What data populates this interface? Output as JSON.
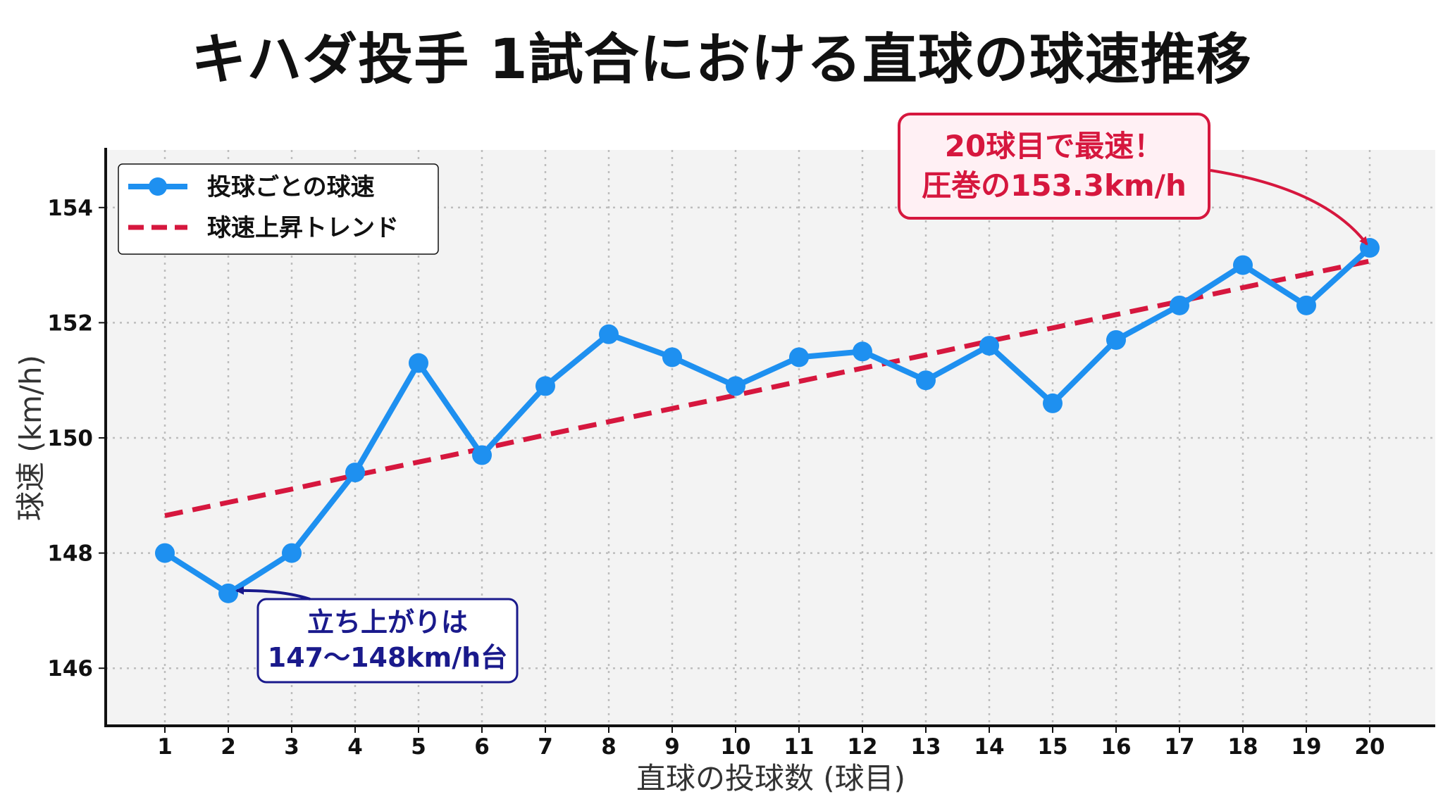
{
  "chart_data": {
    "type": "line",
    "title": "キハダ投手 1試合における直球の球速推移",
    "xlabel": "直球の投球数 (球目)",
    "ylabel": "球速 (km/h)",
    "categories": [
      "1",
      "2",
      "3",
      "4",
      "5",
      "6",
      "7",
      "8",
      "9",
      "10",
      "11",
      "12",
      "13",
      "14",
      "15",
      "16",
      "17",
      "18",
      "19",
      "20"
    ],
    "x": [
      1,
      2,
      3,
      4,
      5,
      6,
      7,
      8,
      9,
      10,
      11,
      12,
      13,
      14,
      15,
      16,
      17,
      18,
      19,
      20
    ],
    "ylim": [
      145,
      155
    ],
    "yticks": [
      "146",
      "148",
      "150",
      "152",
      "154"
    ],
    "grid": true,
    "legend_position": "top-left",
    "series": [
      {
        "name": "投球ごとの球速",
        "color": "#1E90F0",
        "style": "solid-with-markers",
        "values": [
          148.0,
          147.3,
          148.0,
          149.4,
          151.3,
          149.7,
          150.9,
          151.8,
          151.4,
          150.9,
          151.4,
          151.5,
          151.0,
          151.6,
          150.6,
          151.7,
          152.3,
          153.0,
          152.3,
          153.3
        ]
      },
      {
        "name": "球速上昇トレンド",
        "color": "#D6173E",
        "style": "dashed",
        "values": [
          148.65,
          148.88,
          149.11,
          149.35,
          149.58,
          149.81,
          150.05,
          150.28,
          150.51,
          150.74,
          150.98,
          151.21,
          151.44,
          151.68,
          151.91,
          152.14,
          152.37,
          152.61,
          152.84,
          153.07
        ]
      }
    ],
    "annotations": [
      {
        "lines": [
          "20球目で最速！",
          "圧巻の153.3km/h"
        ],
        "target_x": 20,
        "target_y": 153.3,
        "text_color": "#D6173E",
        "border_color": "#D6173E",
        "fill_color": "#FFF0F4"
      },
      {
        "lines": [
          "立ち上がりは",
          "147〜148km/h台"
        ],
        "target_x": 2,
        "target_y": 147.3,
        "text_color": "#1A1A8C",
        "border_color": "#1A1A8C",
        "fill_color": "#FFFFFF"
      }
    ]
  }
}
